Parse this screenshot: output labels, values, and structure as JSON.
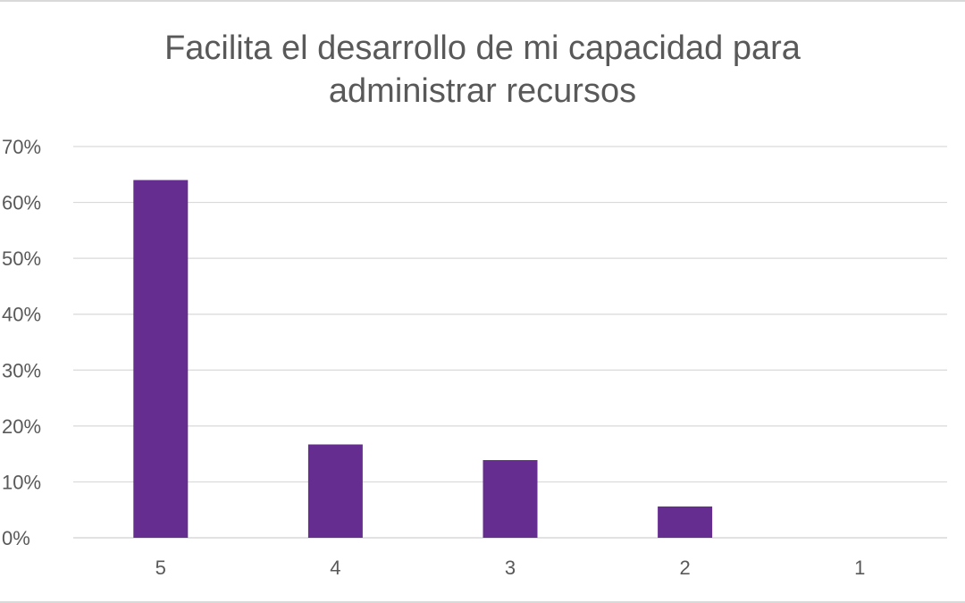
{
  "chart_data": {
    "type": "bar",
    "title_lines": [
      "Facilita el desarrollo de mi capacidad para",
      "administrar recursos"
    ],
    "categories": [
      "5",
      "4",
      "3",
      "2",
      "1"
    ],
    "values": [
      64,
      16.7,
      13.9,
      5.6,
      0
    ],
    "ylim": [
      0,
      70
    ],
    "y_ticks": [
      "0%",
      "10%",
      "20%",
      "30%",
      "40%",
      "50%",
      "60%",
      "70%"
    ],
    "y_tick_values": [
      0,
      10,
      20,
      30,
      40,
      50,
      60,
      70
    ],
    "grid": true,
    "legend": "none",
    "bar_color": "#662D91",
    "grid_color": "#d9d9d9"
  }
}
